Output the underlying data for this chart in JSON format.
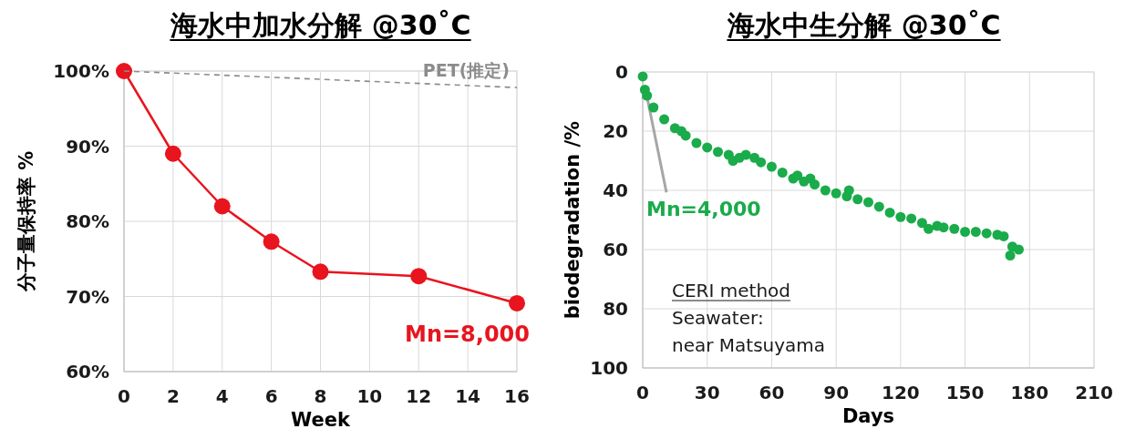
{
  "chart_data": [
    {
      "type": "line",
      "title": "海水中加水分解 @30˚C",
      "xlabel": "Week",
      "ylabel": "分子量保持率 %",
      "xlim": [
        0,
        16
      ],
      "xticks": [
        0,
        2,
        4,
        6,
        8,
        10,
        12,
        14,
        16
      ],
      "ylim": [
        60,
        100
      ],
      "yticks": [
        {
          "value": 60,
          "label": "60%"
        },
        {
          "value": 70,
          "label": "70%"
        },
        {
          "value": 80,
          "label": "80%"
        },
        {
          "value": 90,
          "label": "90%"
        },
        {
          "value": 100,
          "label": "100%"
        }
      ],
      "grid": true,
      "series": [
        {
          "color": "#e8141e",
          "marker": "circle",
          "line_style": "solid",
          "x": [
            0,
            2,
            4,
            6,
            8,
            12,
            16
          ],
          "values": [
            100,
            89,
            82,
            77.3,
            73.3,
            72.7,
            69.1
          ]
        },
        {
          "name": "PET(推定)",
          "color": "#8c8c8c",
          "marker": "none",
          "line_style": "dashed",
          "x": [
            0,
            16
          ],
          "values": [
            100,
            97.8
          ]
        }
      ],
      "annotations": [
        {
          "text": "Mn=8,000",
          "x": 16,
          "y": 69.1
        }
      ]
    },
    {
      "type": "scatter",
      "title": "海水中生分解 @30˚C",
      "xlabel": "Days",
      "ylabel": "biodegradation /%",
      "xlim": [
        0,
        210
      ],
      "xticks": [
        0,
        30,
        60,
        90,
        120,
        150,
        180,
        210
      ],
      "ylim": [
        100,
        0
      ],
      "yticks": [
        0,
        20,
        40,
        60,
        80,
        100
      ],
      "grid": true,
      "marker": "circle",
      "series": [
        {
          "color": "#1aab4b",
          "x": [
            0,
            1,
            2,
            5,
            10,
            15,
            18,
            20,
            25,
            30,
            35,
            40,
            42,
            45,
            48,
            52,
            55,
            60,
            65,
            70,
            72,
            75,
            78,
            80,
            85,
            90,
            95,
            96,
            100,
            105,
            110,
            115,
            120,
            125,
            130,
            133,
            137,
            140,
            145,
            150,
            155,
            160,
            165,
            168,
            171,
            172,
            175
          ],
          "values": [
            1.5,
            6,
            8,
            12,
            16,
            19,
            20,
            21.5,
            24,
            25.5,
            27,
            28,
            30,
            29,
            28,
            29,
            30.5,
            32,
            34,
            36,
            35,
            37,
            36,
            38,
            40,
            41,
            42,
            40,
            43,
            44,
            45.5,
            47.5,
            49,
            49.5,
            51,
            53,
            52,
            52.5,
            53,
            54,
            54,
            54.5,
            55,
            55.5,
            62,
            59,
            60
          ]
        }
      ],
      "annotations": [
        {
          "text": "Mn=4,000",
          "x": 1,
          "y": 6
        },
        "CERI method",
        "Seawater:",
        "near Matsuyama"
      ]
    }
  ]
}
